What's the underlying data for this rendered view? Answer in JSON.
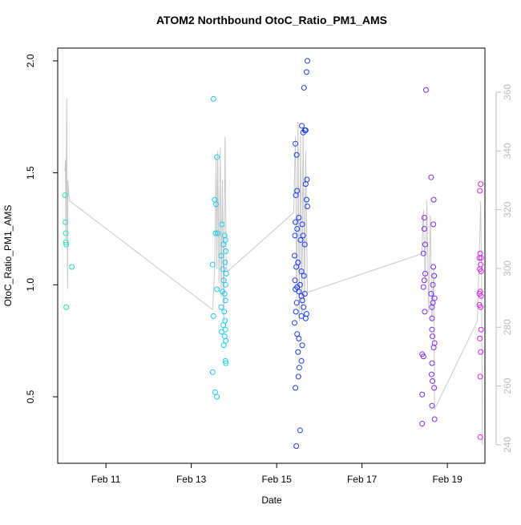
{
  "chart_data": {
    "type": "scatter",
    "title": "ATOM2 Northbound OtoC_Ratio_PM1_AMS",
    "x_label": "Date",
    "y_label": "OtoC_Ratio_PM1_AMS",
    "xlim": [
      9.87,
      19.88
    ],
    "xticks": [
      {
        "value": 11,
        "label": "Feb 11"
      },
      {
        "value": 13,
        "label": "Feb 13"
      },
      {
        "value": 15,
        "label": "Feb 15"
      },
      {
        "value": 17,
        "label": "Feb 17"
      },
      {
        "value": 19,
        "label": "Feb 19"
      }
    ],
    "ylim": [
      0.203,
      2.057
    ],
    "yticks": [
      {
        "value": 0.5,
        "label": "0.5"
      },
      {
        "value": 1,
        "label": "1.0"
      },
      {
        "value": 1.5,
        "label": "1.5"
      },
      {
        "value": 2,
        "label": "2.0"
      }
    ],
    "y2lim": [
      233.7,
      375
    ],
    "y2ticks": [
      240,
      260,
      280,
      300,
      320,
      340,
      360
    ],
    "y2_color": "#bbbbbb",
    "series": [
      {
        "color": "#2de0b0",
        "x": [
          10.04,
          10.05,
          10.06,
          10.06,
          10.07,
          10.07,
          10.2
        ],
        "values": [
          1.4,
          1.28,
          1.23,
          1.19,
          1.18,
          0.9,
          1.08
        ]
      },
      {
        "color": "#1ec8f0",
        "x": [
          13.52,
          13.6,
          13.55,
          13.58,
          13.72,
          13.57,
          13.62,
          13.78,
          13.8,
          13.75,
          13.81,
          13.7,
          13.79,
          13.5,
          13.74,
          13.82,
          13.76,
          13.8,
          13.6,
          13.73,
          13.78,
          13.8,
          13.7,
          13.77,
          13.52,
          13.79,
          13.75,
          13.8,
          13.71,
          13.78,
          13.81,
          13.76,
          13.8,
          13.81,
          13.5,
          13.56,
          13.6
        ],
        "values": [
          1.83,
          1.57,
          1.38,
          1.36,
          1.27,
          1.23,
          1.23,
          1.22,
          1.2,
          1.18,
          1.15,
          1.13,
          1.1,
          1.09,
          1.07,
          1.05,
          1.02,
          1.0,
          0.98,
          0.97,
          0.96,
          0.93,
          0.9,
          0.88,
          0.86,
          0.84,
          0.82,
          0.8,
          0.79,
          0.77,
          0.75,
          0.73,
          0.66,
          0.65,
          0.61,
          0.52,
          0.5
        ]
      },
      {
        "color": "#1a3cf0",
        "x": [
          15.72,
          15.7,
          15.64,
          15.59,
          15.66,
          15.68,
          15.62,
          15.44,
          15.47,
          15.71,
          15.68,
          15.48,
          15.45,
          15.7,
          15.72,
          15.52,
          15.44,
          15.6,
          15.48,
          15.43,
          15.62,
          15.56,
          15.66,
          15.42,
          15.5,
          15.46,
          15.58,
          15.64,
          15.43,
          15.55,
          15.48,
          15.44,
          15.52,
          15.66,
          15.58,
          15.6,
          15.47,
          15.63,
          15.45,
          15.7,
          15.58,
          15.68,
          15.42,
          15.48,
          15.52,
          15.6,
          15.5,
          15.58,
          15.53,
          15.51,
          15.44,
          15.55,
          15.46
        ],
        "values": [
          2.0,
          1.95,
          1.88,
          1.71,
          1.69,
          1.69,
          1.68,
          1.63,
          1.58,
          1.47,
          1.45,
          1.42,
          1.4,
          1.38,
          1.35,
          1.3,
          1.28,
          1.27,
          1.25,
          1.22,
          1.22,
          1.2,
          1.18,
          1.13,
          1.1,
          1.08,
          1.06,
          1.04,
          1.02,
          1.0,
          0.99,
          0.98,
          0.97,
          0.96,
          0.95,
          0.93,
          0.92,
          0.9,
          0.88,
          0.87,
          0.86,
          0.85,
          0.83,
          0.78,
          0.76,
          0.73,
          0.7,
          0.66,
          0.63,
          0.59,
          0.54,
          0.35,
          0.28
        ]
      },
      {
        "color": "#7a2cf0",
        "x": [
          18.5,
          18.62,
          18.68,
          18.46,
          18.67,
          18.46,
          18.48,
          18.44,
          18.67,
          18.48,
          18.69,
          18.46,
          18.66,
          18.44,
          18.62,
          18.7,
          18.66,
          18.64,
          18.47,
          18.64,
          18.64,
          18.65,
          18.7,
          18.68,
          18.41,
          18.44,
          18.64,
          18.63,
          18.65,
          18.69,
          18.41,
          18.64,
          18.7,
          18.41
        ],
        "values": [
          1.87,
          1.48,
          1.38,
          1.3,
          1.27,
          1.25,
          1.18,
          1.14,
          1.08,
          1.05,
          1.04,
          1.02,
          1.0,
          0.99,
          0.96,
          0.94,
          0.92,
          0.9,
          0.88,
          0.85,
          0.8,
          0.77,
          0.74,
          0.72,
          0.69,
          0.68,
          0.65,
          0.6,
          0.57,
          0.54,
          0.51,
          0.46,
          0.4,
          0.38
        ]
      },
      {
        "color": "#e020f0",
        "x": [
          19.78,
          19.76,
          19.77,
          19.79,
          19.75,
          19.78,
          19.76,
          19.79,
          19.77,
          19.75,
          19.79,
          19.75,
          19.78,
          19.79,
          19.76,
          19.78,
          19.77,
          19.77
        ],
        "values": [
          1.45,
          1.42,
          1.14,
          1.12,
          1.12,
          1.09,
          1.07,
          1.06,
          0.97,
          0.96,
          0.95,
          0.91,
          0.9,
          0.8,
          0.76,
          0.7,
          0.59,
          0.32
        ]
      }
    ],
    "y2_series": {
      "axis": "y2",
      "color": "#c8c8c8",
      "x": [
        10.04,
        10.05,
        10.06,
        10.08,
        10.09,
        10.1,
        10.11,
        10.13,
        10.15,
        13.5,
        13.55,
        13.58,
        13.6,
        13.62,
        13.65,
        13.68,
        13.7,
        13.73,
        13.76,
        13.79,
        13.82,
        13.85,
        15.4,
        15.44,
        15.47,
        15.5,
        15.53,
        15.56,
        15.59,
        15.62,
        15.65,
        15.68,
        15.72,
        15.75,
        18.4,
        18.44,
        18.48,
        18.52,
        18.56,
        18.6,
        18.64,
        18.68,
        18.7,
        18.73,
        19.7,
        19.74,
        19.78,
        19.8,
        19.82
      ],
      "values": [
        333,
        337,
        310,
        358,
        320,
        293,
        330,
        325,
        323,
        286,
        300,
        338,
        300,
        340,
        295,
        341,
        290,
        330,
        282,
        345,
        300,
        299,
        319,
        345,
        290,
        350,
        282,
        345,
        285,
        348,
        288,
        340,
        292,
        292,
        305,
        320,
        295,
        323,
        285,
        318,
        282,
        300,
        252,
        253,
        282,
        300,
        323,
        300,
        240
      ]
    }
  }
}
